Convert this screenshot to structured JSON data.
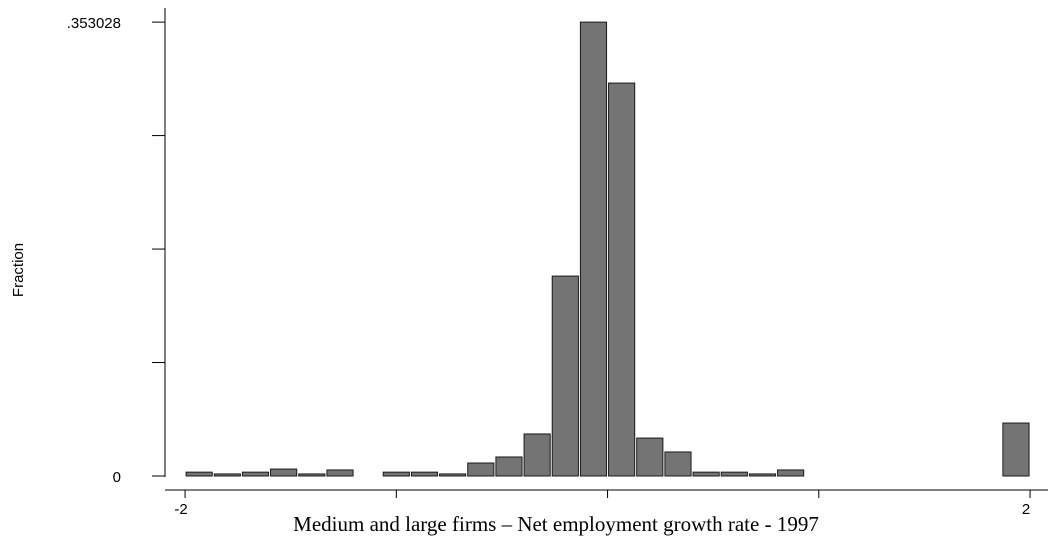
{
  "chart_data": {
    "type": "histogram",
    "xlabel": "Medium and  large  firms – Net employment growth rate - 1997",
    "ylabel": "Fraction",
    "bins": [
      -2,
      -1.8667,
      -1.7333,
      -1.6,
      -1.4667,
      -1.3333,
      -1.2,
      -1.0667,
      -0.9333,
      -0.8,
      -0.6667,
      -0.5333,
      -0.4,
      -0.2667,
      -0.1333,
      0,
      0.1333,
      0.2667,
      0.4,
      0.5333,
      0.6667,
      0.8,
      0.9333,
      1.0667,
      1.2,
      1.3333,
      1.4667,
      1.6,
      1.7333,
      1.8667,
      2
    ],
    "values": [
      0.003,
      0.0016,
      0.003,
      0.0054,
      0.0016,
      0.0047,
      0,
      0.003,
      0.003,
      0.0016,
      0.0101,
      0.0148,
      0.0327,
      0.1555,
      0.353028,
      0.3056,
      0.0295,
      0.0187,
      0.003,
      0.003,
      0.0016,
      0.0047,
      0,
      0,
      0,
      0,
      0,
      0,
      0,
      0.0412
    ],
    "color": "#747474",
    "xlim": [
      -2.095,
      2.085
    ],
    "ylim": [
      0,
      0.364
    ],
    "xticks": [
      -2,
      2
    ],
    "xminorticks": [
      -1,
      0,
      1
    ],
    "yticks": [
      0,
      {
        "value": 0.353028,
        "label": ".353028"
      }
    ],
    "yminorticks": [
      0.088257,
      0.176514,
      0.264771
    ]
  }
}
